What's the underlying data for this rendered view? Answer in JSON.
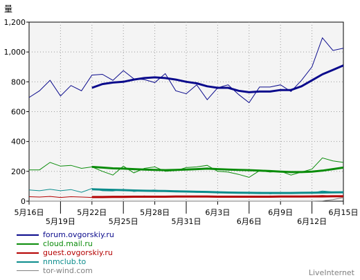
{
  "chart_data": {
    "type": "line",
    "ylabel": "量",
    "ylim": [
      0,
      1200
    ],
    "yticks": [
      0,
      200,
      400,
      600,
      800,
      1000,
      1200
    ],
    "ytick_labels": [
      "0",
      "200",
      "400",
      "600",
      "800",
      "1,000",
      "1,200"
    ],
    "grid": true,
    "legend_position": "bottom-left",
    "x_start_label": "5月16日",
    "xticks": [
      {
        "i": 0,
        "label": "5月16日",
        "row": 1
      },
      {
        "i": 3,
        "label": "5月19日",
        "row": 2
      },
      {
        "i": 6,
        "label": "5月22日",
        "row": 1
      },
      {
        "i": 9,
        "label": "5月25日",
        "row": 2
      },
      {
        "i": 12,
        "label": "5月28日",
        "row": 1
      },
      {
        "i": 15,
        "label": "5月31日",
        "row": 2
      },
      {
        "i": 18,
        "label": "6月3日",
        "row": 1
      },
      {
        "i": 21,
        "label": "6月6日",
        "row": 2
      },
      {
        "i": 24,
        "label": "6月9日",
        "row": 1
      },
      {
        "i": 27,
        "label": "6月12日",
        "row": 2
      },
      {
        "i": 30,
        "label": "6月15日",
        "row": 1
      }
    ],
    "series": [
      {
        "name": "forum.ovgorskiy.ru",
        "color": "#0a0a8c",
        "values": [
          695,
          740,
          810,
          705,
          775,
          740,
          845,
          850,
          810,
          875,
          820,
          815,
          795,
          855,
          740,
          720,
          780,
          680,
          760,
          780,
          715,
          660,
          765,
          765,
          780,
          735,
          810,
          900,
          1095,
          1010,
          1025
        ],
        "trend": [
          null,
          null,
          null,
          null,
          null,
          null,
          760,
          785,
          795,
          800,
          815,
          825,
          830,
          825,
          815,
          800,
          790,
          770,
          760,
          760,
          740,
          730,
          735,
          735,
          745,
          745,
          770,
          810,
          850,
          880,
          910
        ]
      },
      {
        "name": "cloud.mail.ru",
        "color": "#0a8c0a",
        "values": [
          210,
          210,
          260,
          235,
          240,
          220,
          230,
          200,
          175,
          235,
          190,
          220,
          230,
          200,
          205,
          225,
          230,
          240,
          200,
          195,
          180,
          160,
          205,
          195,
          200,
          175,
          195,
          215,
          290,
          270,
          260
        ],
        "trend": [
          null,
          null,
          null,
          null,
          null,
          null,
          230,
          225,
          220,
          218,
          215,
          212,
          210,
          208,
          210,
          212,
          215,
          218,
          215,
          212,
          210,
          208,
          205,
          202,
          198,
          195,
          195,
          198,
          205,
          215,
          225
        ]
      },
      {
        "name": "guest.ovgorskiy.ru",
        "color": "#b40000",
        "values": [
          30,
          28,
          32,
          25,
          30,
          28,
          25,
          30,
          28,
          32,
          30,
          35,
          30,
          32,
          28,
          30,
          33,
          30,
          28,
          30,
          32,
          30,
          28,
          35,
          30,
          32,
          30,
          35,
          38,
          35,
          35
        ],
        "trend": [
          null,
          null,
          null,
          null,
          null,
          null,
          28,
          28,
          29,
          29,
          30,
          30,
          30,
          30,
          31,
          31,
          31,
          31,
          30,
          30,
          30,
          30,
          30,
          30,
          31,
          31,
          31,
          32,
          32,
          33,
          33
        ]
      },
      {
        "name": "nnmclub.to",
        "color": "#0a8c8c",
        "values": [
          75,
          70,
          80,
          70,
          78,
          60,
          85,
          70,
          68,
          80,
          65,
          72,
          75,
          65,
          70,
          68,
          60,
          62,
          55,
          58,
          60,
          55,
          60,
          50,
          55,
          52,
          60,
          55,
          68,
          62,
          60
        ],
        "trend": [
          null,
          null,
          null,
          null,
          null,
          null,
          80,
          78,
          76,
          74,
          72,
          70,
          69,
          68,
          66,
          65,
          63,
          62,
          60,
          58,
          57,
          56,
          55,
          55,
          55,
          55,
          56,
          57,
          58,
          59,
          60
        ]
      },
      {
        "name": "tor-wind.com",
        "color": "#808080",
        "values": [
          0,
          0,
          0,
          0,
          0,
          0,
          0,
          0,
          0,
          0,
          0,
          0,
          0,
          0,
          0,
          0,
          0,
          0,
          0,
          0,
          0,
          0,
          0,
          0,
          0,
          0,
          0,
          0,
          2,
          10,
          25
        ],
        "trend": []
      }
    ]
  },
  "watermark": "LiveInternet"
}
